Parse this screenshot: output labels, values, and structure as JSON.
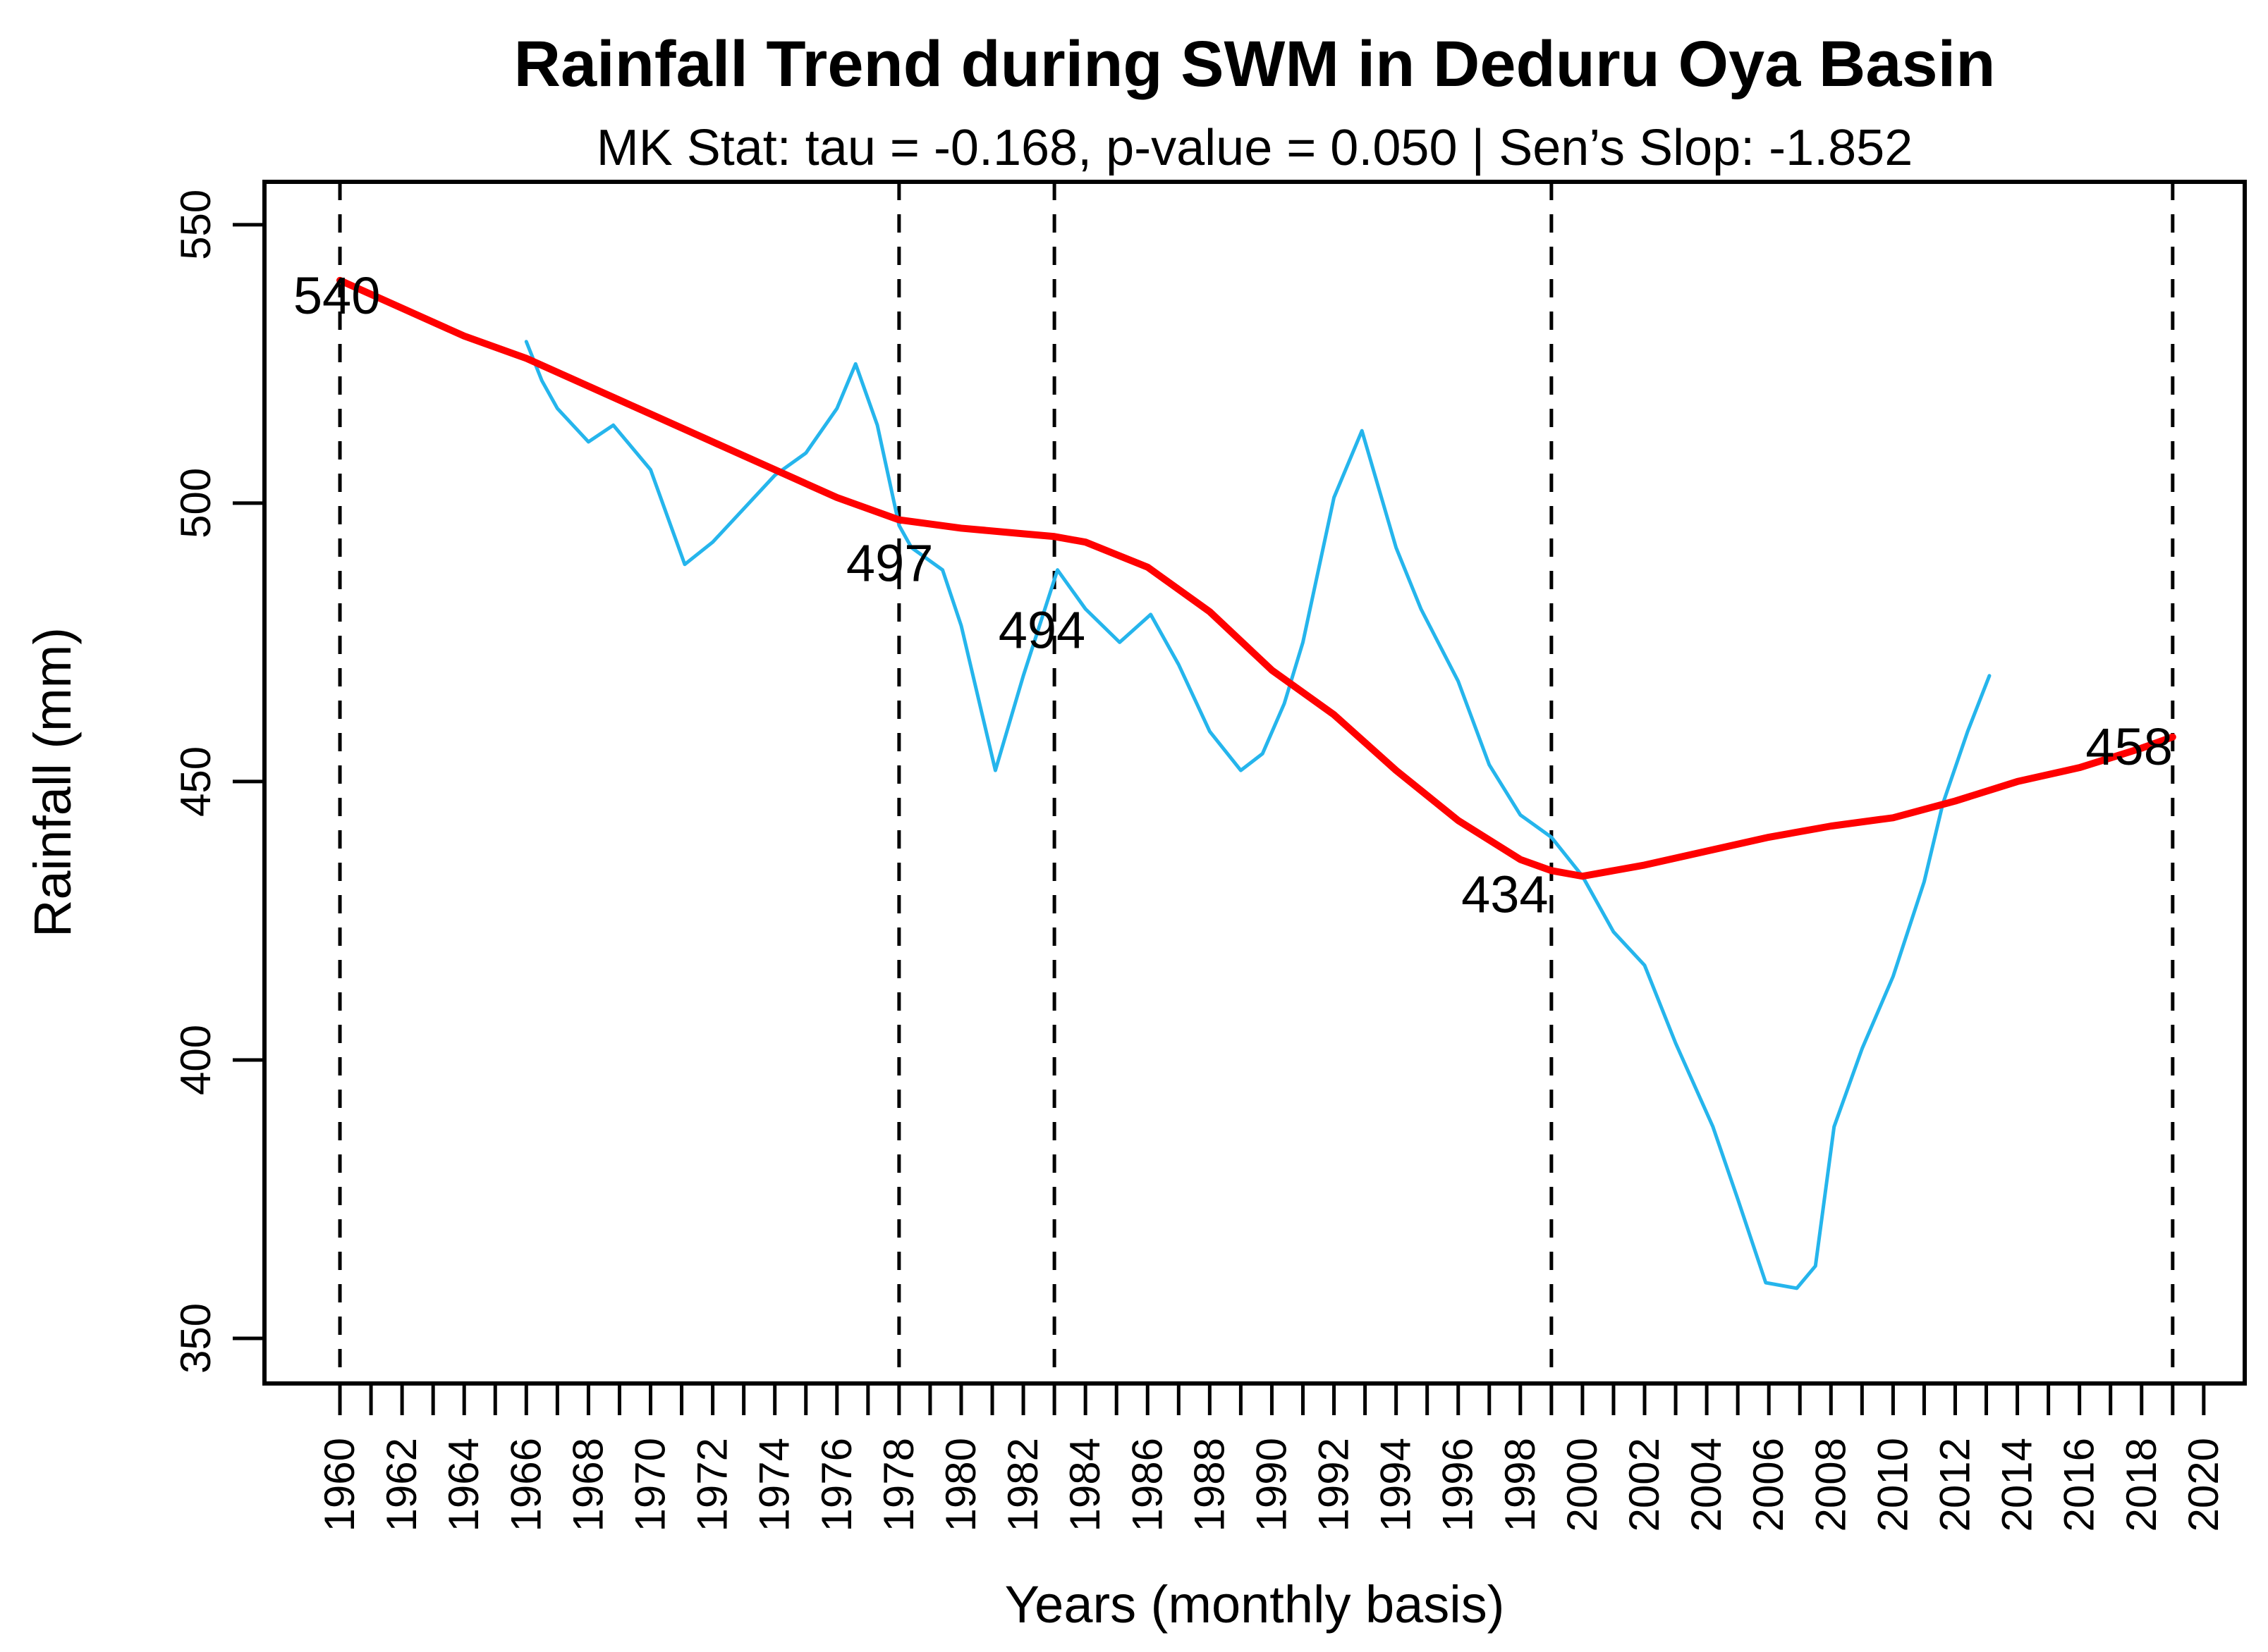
{
  "title": "Rainfall Trend during SWM in Deduru Oya Basin",
  "subtitle": "MK Stat: tau = -0.168, p-value = 0.050 | Sen’s Slop: -1.852",
  "chart_data": {
    "type": "line",
    "title": "Rainfall Trend during SWM in Deduru Oya Basin",
    "subtitle": "MK Stat: tau = -0.168, p-value = 0.050 | Sen’s Slop: -1.852",
    "xlabel": "Years (monthly basis)",
    "ylabel": "Rainfall (mm)",
    "xlim": [
      1957.57,
      2021.32
    ],
    "ylim": [
      341.9,
      557.7
    ],
    "grid": false,
    "legend": "none",
    "x_ticks": {
      "start": 1960,
      "end": 2020,
      "step": 1,
      "label_every": 2
    },
    "y_ticks": [
      350,
      400,
      450,
      500,
      550
    ],
    "colors": {
      "trend": "#FF0000",
      "series": "#25B5EC",
      "annotation": "#C5791D",
      "axis": "#000000"
    },
    "series": [
      {
        "name": "smoothed_annual_rainfall",
        "color_key": "series",
        "points": [
          [
            1966.0,
            529
          ],
          [
            1966.5,
            522
          ],
          [
            1967.0,
            517
          ],
          [
            1968.0,
            511
          ],
          [
            1968.8,
            514
          ],
          [
            1970.0,
            506
          ],
          [
            1971.1,
            489
          ],
          [
            1972.0,
            493
          ],
          [
            1973.0,
            499
          ],
          [
            1974.0,
            505
          ],
          [
            1975.0,
            509
          ],
          [
            1976.0,
            517
          ],
          [
            1976.6,
            525
          ],
          [
            1977.3,
            514
          ],
          [
            1978.0,
            496
          ],
          [
            1978.4,
            492
          ],
          [
            1979.4,
            488
          ],
          [
            1980.0,
            478
          ],
          [
            1981.1,
            452
          ],
          [
            1982.0,
            469
          ],
          [
            1983.1,
            488
          ],
          [
            1984.0,
            481
          ],
          [
            1985.1,
            475
          ],
          [
            1986.1,
            480
          ],
          [
            1987.0,
            471
          ],
          [
            1988.0,
            459
          ],
          [
            1989.0,
            452
          ],
          [
            1989.7,
            455
          ],
          [
            1990.4,
            464
          ],
          [
            1991.0,
            475
          ],
          [
            1992.0,
            501
          ],
          [
            1992.9,
            513
          ],
          [
            1994.0,
            492
          ],
          [
            1994.8,
            481
          ],
          [
            1996.0,
            468
          ],
          [
            1997.0,
            453
          ],
          [
            1998.0,
            444
          ],
          [
            1999.0,
            440
          ],
          [
            2000.0,
            433
          ],
          [
            2001.0,
            423
          ],
          [
            2002.0,
            417
          ],
          [
            2003.0,
            403
          ],
          [
            2004.2,
            388
          ],
          [
            2005.0,
            375
          ],
          [
            2005.9,
            360
          ],
          [
            2006.9,
            359
          ],
          [
            2007.5,
            363
          ],
          [
            2008.1,
            388
          ],
          [
            2009.0,
            402
          ],
          [
            2010.0,
            415
          ],
          [
            2011.0,
            432
          ],
          [
            2011.6,
            446
          ],
          [
            2012.4,
            459
          ],
          [
            2013.1,
            469
          ]
        ]
      },
      {
        "name": "sen_slope_trend",
        "color_key": "trend",
        "points": [
          [
            1960,
            540
          ],
          [
            1962,
            535
          ],
          [
            1964,
            530
          ],
          [
            1966,
            526
          ],
          [
            1968,
            521
          ],
          [
            1970,
            516
          ],
          [
            1972,
            511
          ],
          [
            1974,
            506
          ],
          [
            1976,
            501
          ],
          [
            1978,
            497
          ],
          [
            1980,
            495.5
          ],
          [
            1982,
            494.5
          ],
          [
            1983,
            494
          ],
          [
            1984,
            493
          ],
          [
            1986,
            488.5
          ],
          [
            1988,
            480.5
          ],
          [
            1990,
            470
          ],
          [
            1992,
            462
          ],
          [
            1994,
            452
          ],
          [
            1996,
            443
          ],
          [
            1998,
            436
          ],
          [
            1999,
            434
          ],
          [
            2000,
            433
          ],
          [
            2002,
            435
          ],
          [
            2004,
            437.5
          ],
          [
            2006,
            440
          ],
          [
            2008,
            442
          ],
          [
            2010,
            443.5
          ],
          [
            2012,
            446.5
          ],
          [
            2014,
            450
          ],
          [
            2016,
            452.5
          ],
          [
            2018,
            456
          ],
          [
            2019,
            458
          ]
        ]
      }
    ],
    "change_points": [
      {
        "year": 1960,
        "label": "540",
        "label_x": 1959.9,
        "label_y": 534
      },
      {
        "year": 1978,
        "label": "497",
        "label_x": 1977.7,
        "label_y": 486
      },
      {
        "year": 1983,
        "label": "494",
        "label_x": 1982.6,
        "label_y": 474
      },
      {
        "year": 1999,
        "label": "434",
        "label_x": 1997.5,
        "label_y": 426.5
      },
      {
        "year": 2019,
        "label": "458",
        "label_x": 2017.6,
        "label_y": 453
      }
    ]
  }
}
